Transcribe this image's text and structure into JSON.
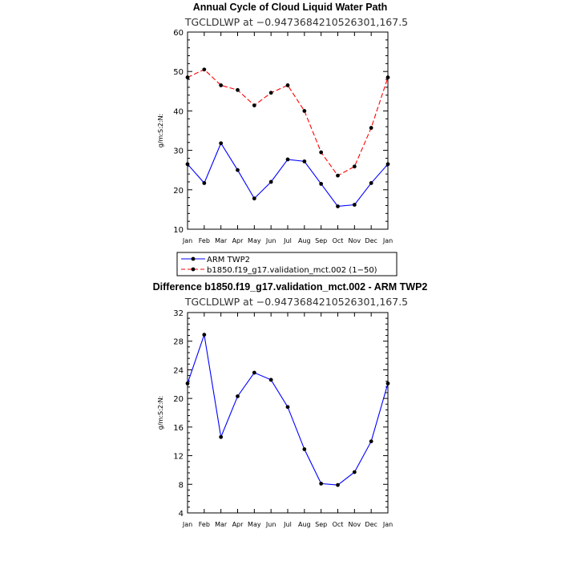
{
  "chart_data": [
    {
      "type": "line",
      "title": "Annual Cycle of Cloud Liquid Water Path",
      "subtitle": "TGCLDLWP at −0.9473684210526301,167.5",
      "ylabel": "g/m:S:2:N:",
      "ylim": [
        10,
        60
      ],
      "yticks": [
        10,
        20,
        30,
        40,
        50,
        60
      ],
      "categories": [
        "Jan",
        "Feb",
        "Mar",
        "Apr",
        "May",
        "Jun",
        "Jul",
        "Aug",
        "Sep",
        "Oct",
        "Nov",
        "Dec",
        "Jan"
      ],
      "series": [
        {
          "name": "ARM TWP2",
          "color": "#0000ff",
          "dash": "solid",
          "values": [
            26.5,
            21.7,
            31.8,
            25.0,
            17.8,
            22.0,
            27.7,
            27.2,
            21.5,
            15.8,
            16.2,
            21.7,
            26.5
          ]
        },
        {
          "name": "b1850.f19_g17.validation_mct.002 (1−50)",
          "color": "#ff0000",
          "dash": "dashed",
          "values": [
            48.5,
            50.5,
            46.5,
            45.3,
            41.4,
            44.6,
            46.5,
            40.0,
            29.5,
            23.6,
            25.9,
            35.7,
            48.5
          ]
        }
      ]
    },
    {
      "type": "line",
      "title": "Difference b1850.f19_g17.validation_mct.002 - ARM TWP2",
      "subtitle": "TGCLDLWP at −0.9473684210526301,167.5",
      "ylabel": "g/m:S:2:N:",
      "ylim": [
        4,
        32
      ],
      "yticks": [
        4,
        8,
        12,
        16,
        20,
        24,
        28,
        32
      ],
      "categories": [
        "Jan",
        "Feb",
        "Mar",
        "Apr",
        "May",
        "Jun",
        "Jul",
        "Aug",
        "Sep",
        "Oct",
        "Nov",
        "Dec",
        "Jan"
      ],
      "series": [
        {
          "name": "",
          "color": "#0000ff",
          "dash": "solid",
          "values": [
            22.1,
            28.9,
            14.6,
            20.3,
            23.6,
            22.6,
            18.8,
            12.9,
            8.1,
            7.9,
            9.7,
            14.0,
            22.1
          ]
        }
      ]
    }
  ]
}
